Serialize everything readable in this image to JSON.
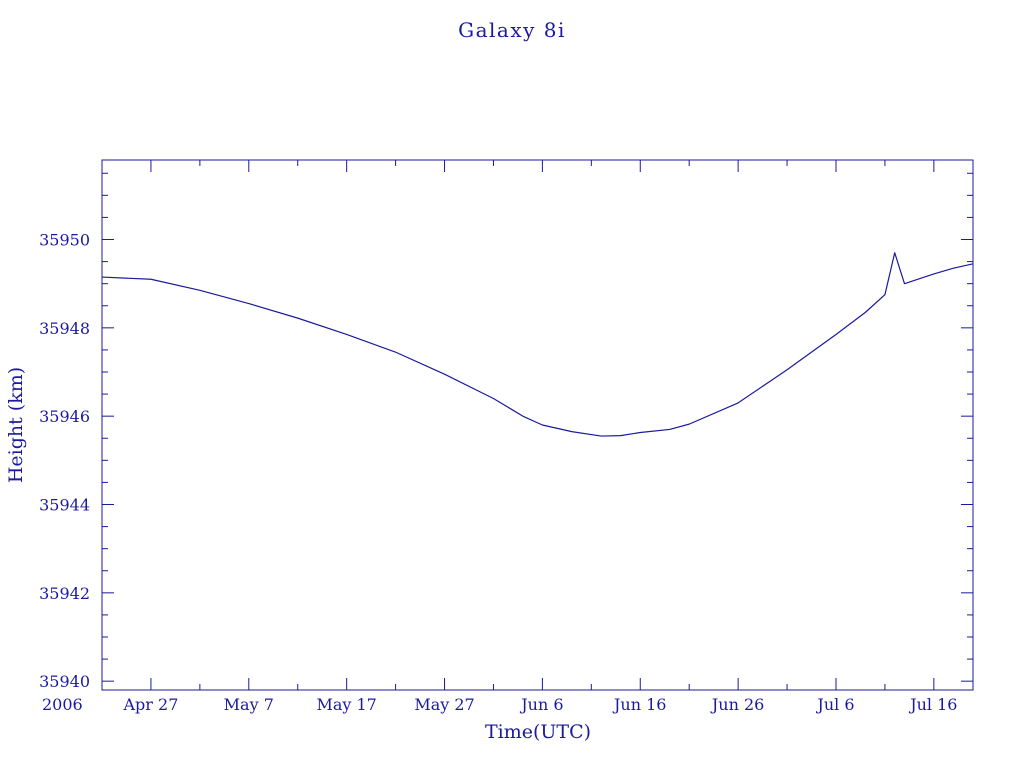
{
  "colors": {
    "ink": "#1a1a9e",
    "background": "#ffffff"
  },
  "chart_data": {
    "type": "line",
    "title": "Galaxy 8i",
    "xlabel": "Time(UTC)",
    "ylabel": "Height (km)",
    "x_start_label": "2006",
    "x_unit": "date",
    "xlim": [
      "2006-04-22",
      "2006-07-20"
    ],
    "ylim": [
      35939.8,
      35951.8
    ],
    "yticks": [
      35940,
      35942,
      35944,
      35946,
      35948,
      35950
    ],
    "xticks": [
      {
        "date": "2006-04-27",
        "label": "Apr 27"
      },
      {
        "date": "2006-05-07",
        "label": "May  7"
      },
      {
        "date": "2006-05-17",
        "label": "May 17"
      },
      {
        "date": "2006-05-27",
        "label": "May 27"
      },
      {
        "date": "2006-06-06",
        "label": "Jun  6"
      },
      {
        "date": "2006-06-16",
        "label": "Jun 16"
      },
      {
        "date": "2006-06-26",
        "label": "Jun 26"
      },
      {
        "date": "2006-07-06",
        "label": "Jul  6"
      },
      {
        "date": "2006-07-16",
        "label": "Jul 16"
      }
    ],
    "grid": false,
    "series": [
      {
        "points": [
          [
            "2006-04-22",
            35949.15
          ],
          [
            "2006-04-27",
            35949.1
          ],
          [
            "2006-05-02",
            35948.85
          ],
          [
            "2006-05-07",
            35948.55
          ],
          [
            "2006-05-12",
            35948.22
          ],
          [
            "2006-05-17",
            35947.85
          ],
          [
            "2006-05-22",
            35947.45
          ],
          [
            "2006-05-27",
            35946.95
          ],
          [
            "2006-06-01",
            35946.4
          ],
          [
            "2006-06-04",
            35946.0
          ],
          [
            "2006-06-06",
            35945.8
          ],
          [
            "2006-06-09",
            35945.65
          ],
          [
            "2006-06-12",
            35945.55
          ],
          [
            "2006-06-14",
            35945.56
          ],
          [
            "2006-06-16",
            35945.63
          ],
          [
            "2006-06-19",
            35945.7
          ],
          [
            "2006-06-21",
            35945.82
          ],
          [
            "2006-06-26",
            35946.3
          ],
          [
            "2006-06-29",
            35946.75
          ],
          [
            "2006-07-01",
            35947.05
          ],
          [
            "2006-07-06",
            35947.85
          ],
          [
            "2006-07-09",
            35948.35
          ],
          [
            "2006-07-11",
            35948.75
          ],
          [
            "2006-07-12",
            35949.7
          ],
          [
            "2006-07-13",
            35949.0
          ],
          [
            "2006-07-16",
            35949.22
          ],
          [
            "2006-07-18",
            35949.35
          ],
          [
            "2006-07-20",
            35949.45
          ]
        ]
      }
    ]
  }
}
